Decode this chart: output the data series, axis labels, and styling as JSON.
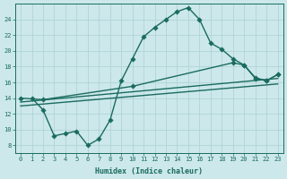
{
  "xlabel": "Humidex (Indice chaleur)",
  "bg_color": "#cce8ea",
  "grid_color": "#b0d4d8",
  "line_color": "#1a6b60",
  "ylim": [
    7,
    26
  ],
  "xlim": [
    -0.5,
    23.5
  ],
  "yticks": [
    8,
    10,
    12,
    14,
    16,
    18,
    20,
    22,
    24
  ],
  "xticks": [
    0,
    1,
    2,
    3,
    4,
    5,
    6,
    7,
    8,
    9,
    10,
    11,
    12,
    13,
    14,
    15,
    16,
    17,
    18,
    19,
    20,
    21,
    22,
    23
  ],
  "curve1_x": [
    1,
    2,
    3,
    4,
    5,
    6,
    7,
    8,
    9,
    10,
    11,
    12,
    13,
    14,
    15,
    16,
    17,
    18,
    19,
    20,
    21,
    22,
    23
  ],
  "curve1_y": [
    14.0,
    12.5,
    9.2,
    9.5,
    9.8,
    8.0,
    8.8,
    11.2,
    16.2,
    19.0,
    21.8,
    23.0,
    24.0,
    25.0,
    25.5,
    24.0,
    21.0,
    20.2,
    19.0,
    18.2,
    16.5,
    16.2,
    17.0
  ],
  "line2_x": [
    0,
    2,
    10,
    19,
    20,
    21,
    22,
    23
  ],
  "line2_y": [
    14.0,
    13.8,
    15.5,
    18.5,
    18.2,
    16.6,
    16.2,
    17.0
  ],
  "line3_x": [
    0,
    23
  ],
  "line3_y": [
    13.5,
    16.5
  ],
  "line4_x": [
    0,
    23
  ],
  "line4_y": [
    13.0,
    15.8
  ],
  "marker_size": 2.8,
  "line_width": 1.0
}
